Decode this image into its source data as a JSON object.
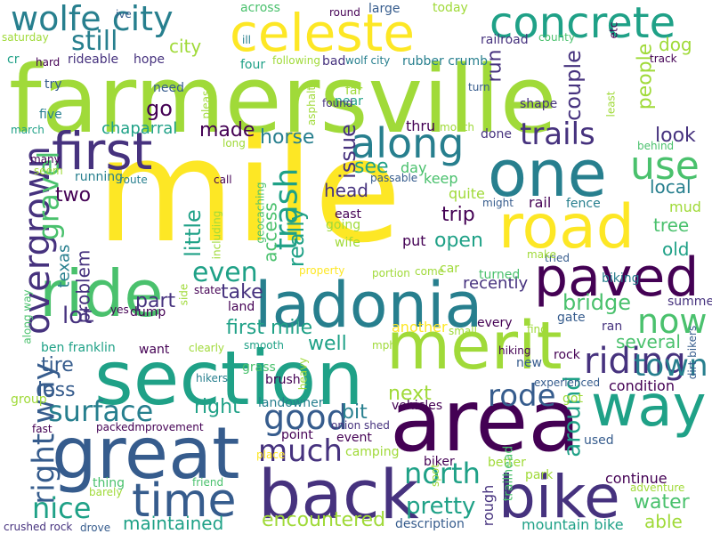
{
  "word_cloud": {
    "background": "#ffffff",
    "palette": [
      "#fde725",
      "#a0da39",
      "#4ac16d",
      "#1fa187",
      "#277f8e",
      "#365c8d",
      "#46327e",
      "#440154"
    ],
    "words": [
      {
        "text": "farmersville",
        "color": "#a0da39"
      },
      {
        "text": "mile",
        "color": "#fde725"
      },
      {
        "text": "area",
        "color": "#440154"
      },
      {
        "text": "section",
        "color": "#1fa187"
      },
      {
        "text": "great",
        "color": "#365c8d"
      },
      {
        "text": "back",
        "color": "#46327e"
      },
      {
        "text": "ride",
        "color": "#4ac16d"
      },
      {
        "text": "merit",
        "color": "#a0da39"
      },
      {
        "text": "ladonia",
        "color": "#277f8e"
      },
      {
        "text": "one",
        "color": "#277f8e"
      },
      {
        "text": "road",
        "color": "#fde725"
      },
      {
        "text": "bike",
        "color": "#46327e"
      },
      {
        "text": "way",
        "color": "#1fa187"
      },
      {
        "text": "paved",
        "color": "#440154"
      },
      {
        "text": "celeste",
        "color": "#fde725"
      },
      {
        "text": "concrete",
        "color": "#1fa187"
      },
      {
        "text": "first",
        "color": "#46327e"
      },
      {
        "text": "time",
        "color": "#365c8d"
      },
      {
        "text": "wolfe city",
        "color": "#277f8e"
      },
      {
        "text": "along",
        "color": "#277f8e"
      },
      {
        "text": "overgrown",
        "color": "#46327e"
      },
      {
        "text": "right way",
        "color": "#365c8d"
      },
      {
        "text": "surface",
        "color": "#277f8e"
      },
      {
        "text": "good",
        "color": "#365c8d"
      },
      {
        "text": "riding",
        "color": "#46327e"
      },
      {
        "text": "rode",
        "color": "#365c8d"
      },
      {
        "text": "trails",
        "color": "#46327e"
      },
      {
        "text": "use",
        "color": "#4ac16d"
      },
      {
        "text": "now",
        "color": "#4ac16d"
      },
      {
        "text": "town",
        "color": "#277f8e"
      },
      {
        "text": "north",
        "color": "#1fa187"
      },
      {
        "text": "much",
        "color": "#46327e"
      },
      {
        "text": "nice",
        "color": "#1fa187"
      },
      {
        "text": "trash",
        "color": "#1fa187"
      },
      {
        "text": "even",
        "color": "#1fa187"
      },
      {
        "text": "gravel",
        "color": "#4ac16d"
      },
      {
        "text": "still",
        "color": "#277f8e"
      },
      {
        "text": "first mile",
        "color": "#1fa187"
      },
      {
        "text": "bridge",
        "color": "#4ac16d"
      },
      {
        "text": "water",
        "color": "#4ac16d"
      },
      {
        "text": "pretty",
        "color": "#1fa187"
      },
      {
        "text": "several",
        "color": "#4ac16d"
      },
      {
        "text": "local",
        "color": "#277f8e"
      },
      {
        "text": "head",
        "color": "#46327e"
      },
      {
        "text": "issue",
        "color": "#46327e"
      },
      {
        "text": "access",
        "color": "#4ac16d"
      },
      {
        "text": "really",
        "color": "#1fa187"
      },
      {
        "text": "horse",
        "color": "#277f8e"
      },
      {
        "text": "little",
        "color": "#1fa187"
      },
      {
        "text": "couple",
        "color": "#46327e"
      },
      {
        "text": "people",
        "color": "#a0da39"
      },
      {
        "text": "around",
        "color": "#1fa187"
      },
      {
        "text": "encountered",
        "color": "#a0da39"
      },
      {
        "text": "maintained",
        "color": "#1fa187"
      },
      {
        "text": "lot",
        "color": "#46327e"
      },
      {
        "text": "part",
        "color": "#46327e"
      },
      {
        "text": "take",
        "color": "#46327e"
      },
      {
        "text": "well",
        "color": "#1fa187"
      },
      {
        "text": "tire",
        "color": "#365c8d"
      },
      {
        "text": "less",
        "color": "#365c8d"
      },
      {
        "text": "next",
        "color": "#a0da39"
      },
      {
        "text": "bit",
        "color": "#277f8e"
      },
      {
        "text": "right",
        "color": "#1fa187"
      },
      {
        "text": "open",
        "color": "#1fa187"
      },
      {
        "text": "trip",
        "color": "#440154"
      },
      {
        "text": "go",
        "color": "#440154"
      },
      {
        "text": "two",
        "color": "#440154"
      },
      {
        "text": "see",
        "color": "#1fa187"
      },
      {
        "text": "made",
        "color": "#440154"
      },
      {
        "text": "dog",
        "color": "#a0da39"
      },
      {
        "text": "city",
        "color": "#a0da39"
      },
      {
        "text": "run",
        "color": "#46327e"
      },
      {
        "text": "look",
        "color": "#46327e"
      },
      {
        "text": "tree",
        "color": "#4ac16d"
      },
      {
        "text": "old",
        "color": "#1fa187"
      },
      {
        "text": "mud",
        "color": "#a0da39"
      },
      {
        "text": "texas",
        "color": "#277f8e"
      },
      {
        "text": "problem",
        "color": "#46327e"
      },
      {
        "text": "recently",
        "color": "#46327e"
      },
      {
        "text": "condition",
        "color": "#440154"
      },
      {
        "text": "continue",
        "color": "#440154"
      },
      {
        "text": "mountain bike",
        "color": "#1fa187"
      },
      {
        "text": "able",
        "color": "#a0da39"
      },
      {
        "text": "chaparral",
        "color": "#1fa187"
      },
      {
        "text": "another",
        "color": "#fde725"
      },
      {
        "text": "biking",
        "color": "#277f8e"
      },
      {
        "text": "rail",
        "color": "#440154"
      },
      {
        "text": "fence",
        "color": "#277f8e"
      },
      {
        "text": "landowner",
        "color": "#277f8e"
      },
      {
        "text": "event",
        "color": "#440154"
      },
      {
        "text": "point",
        "color": "#440154"
      },
      {
        "text": "description",
        "color": "#365c8d"
      },
      {
        "text": "biker",
        "color": "#440154"
      },
      {
        "text": "park",
        "color": "#a0da39"
      },
      {
        "text": "better",
        "color": "#a0da39"
      },
      {
        "text": "rough",
        "color": "#46327e"
      },
      {
        "text": "trailhead",
        "color": "#4ac16d"
      },
      {
        "text": "used",
        "color": "#365c8d"
      },
      {
        "text": "ran",
        "color": "#46327e"
      },
      {
        "text": "gate",
        "color": "#365c8d"
      },
      {
        "text": "summer",
        "color": "#46327e"
      },
      {
        "text": "shape",
        "color": "#46327e"
      },
      {
        "text": "railroad",
        "color": "#46327e"
      },
      {
        "text": "large",
        "color": "#365c8d"
      },
      {
        "text": "today",
        "color": "#a0da39"
      },
      {
        "text": "across",
        "color": "#4ac16d"
      },
      {
        "text": "rubber crumb",
        "color": "#277f8e"
      },
      {
        "text": "hope",
        "color": "#46327e"
      },
      {
        "text": "rideable",
        "color": "#46327e"
      },
      {
        "text": "saturday",
        "color": "#a0da39"
      },
      {
        "text": "try",
        "color": "#365c8d"
      },
      {
        "text": "five",
        "color": "#277f8e"
      },
      {
        "text": "march",
        "color": "#1fa187"
      },
      {
        "text": "many",
        "color": "#440154"
      },
      {
        "text": "seem",
        "color": "#a0da39"
      },
      {
        "text": "running",
        "color": "#277f8e"
      },
      {
        "text": "route",
        "color": "#277f8e"
      },
      {
        "text": "need",
        "color": "#365c8d"
      },
      {
        "text": "please",
        "color": "#a0da39"
      },
      {
        "text": "long",
        "color": "#a0da39"
      },
      {
        "text": "call",
        "color": "#440154"
      },
      {
        "text": "including",
        "color": "#a0da39"
      },
      {
        "text": "geocaching",
        "color": "#4ac16d"
      },
      {
        "text": "four",
        "color": "#1fa187"
      },
      {
        "text": "following",
        "color": "#a0da39"
      },
      {
        "text": "bad",
        "color": "#46327e"
      },
      {
        "text": "wolf city",
        "color": "#277f8e"
      },
      {
        "text": "asphalt",
        "color": "#a0da39"
      },
      {
        "text": "far",
        "color": "#a0da39"
      },
      {
        "text": "near",
        "color": "#1fa187"
      },
      {
        "text": "found",
        "color": "#46327e"
      },
      {
        "text": "turn",
        "color": "#365c8d"
      },
      {
        "text": "quite",
        "color": "#a0da39"
      },
      {
        "text": "might",
        "color": "#365c8d"
      },
      {
        "text": "keep",
        "color": "#4ac16d"
      },
      {
        "text": "day",
        "color": "#4ac16d"
      },
      {
        "text": "passable",
        "color": "#365c8d"
      },
      {
        "text": "thru",
        "color": "#440154"
      },
      {
        "text": "month",
        "color": "#a0da39"
      },
      {
        "text": "done",
        "color": "#46327e"
      },
      {
        "text": "east",
        "color": "#440154"
      },
      {
        "text": "going",
        "color": "#a0da39"
      },
      {
        "text": "wife",
        "color": "#a0da39"
      },
      {
        "text": "put",
        "color": "#440154"
      },
      {
        "text": "car",
        "color": "#a0da39"
      },
      {
        "text": "come",
        "color": "#a0da39"
      },
      {
        "text": "portion",
        "color": "#a0da39"
      },
      {
        "text": "property",
        "color": "#fde725"
      },
      {
        "text": "turned",
        "color": "#4ac16d"
      },
      {
        "text": "every",
        "color": "#440154"
      },
      {
        "text": "small",
        "color": "#a0da39"
      },
      {
        "text": "find",
        "color": "#a0da39"
      },
      {
        "text": "tried",
        "color": "#365c8d"
      },
      {
        "text": "make",
        "color": "#a0da39"
      },
      {
        "text": "least",
        "color": "#a0da39"
      },
      {
        "text": "behind",
        "color": "#4ac16d"
      },
      {
        "text": "county",
        "color": "#4ac16d"
      },
      {
        "text": "track",
        "color": "#440154"
      },
      {
        "text": "etc",
        "color": "#440154"
      },
      {
        "text": "round",
        "color": "#440154"
      },
      {
        "text": "ive",
        "color": "#365c8d"
      },
      {
        "text": "ill",
        "color": "#277f8e"
      },
      {
        "text": "cr",
        "color": "#1fa187"
      },
      {
        "text": "hard",
        "color": "#440154"
      },
      {
        "text": "state",
        "color": "#440154"
      },
      {
        "text": "side",
        "color": "#a0da39"
      },
      {
        "text": "dump",
        "color": "#440154"
      },
      {
        "text": "land",
        "color": "#440154"
      },
      {
        "text": "yes",
        "color": "#440154"
      },
      {
        "text": "ben franklin",
        "color": "#1fa187"
      },
      {
        "text": "want",
        "color": "#440154"
      },
      {
        "text": "clearly",
        "color": "#a0da39"
      },
      {
        "text": "smooth",
        "color": "#1fa187"
      },
      {
        "text": "mph",
        "color": "#a0da39"
      },
      {
        "text": "hiking",
        "color": "#440154"
      },
      {
        "text": "rock",
        "color": "#440154"
      },
      {
        "text": "new",
        "color": "#365c8d"
      },
      {
        "text": "heavy",
        "color": "#a0da39"
      },
      {
        "text": "grass",
        "color": "#4ac16d"
      },
      {
        "text": "brush",
        "color": "#440154"
      },
      {
        "text": "hikers",
        "color": "#277f8e"
      },
      {
        "text": "group",
        "color": "#a0da39"
      },
      {
        "text": "experienced",
        "color": "#365c8d"
      },
      {
        "text": "got",
        "color": "#a0da39"
      },
      {
        "text": "dirt bikers",
        "color": "#365c8d"
      },
      {
        "text": "vehicles",
        "color": "#440154"
      },
      {
        "text": "onion shed",
        "color": "#46327e"
      },
      {
        "text": "fast",
        "color": "#440154"
      },
      {
        "text": "packed",
        "color": "#440154"
      },
      {
        "text": "improvement",
        "color": "#440154"
      },
      {
        "text": "camping",
        "color": "#a0da39"
      },
      {
        "text": "spot",
        "color": "#a0da39"
      },
      {
        "text": "place",
        "color": "#fde725"
      },
      {
        "text": "thing",
        "color": "#4ac16d"
      },
      {
        "text": "friend",
        "color": "#4ac16d"
      },
      {
        "text": "barely",
        "color": "#a0da39"
      },
      {
        "text": "crushed rock",
        "color": "#46327e"
      },
      {
        "text": "drove",
        "color": "#365c8d"
      },
      {
        "text": "adventure",
        "color": "#a0da39"
      },
      {
        "text": "along way",
        "color": "#4ac16d"
      }
    ]
  }
}
